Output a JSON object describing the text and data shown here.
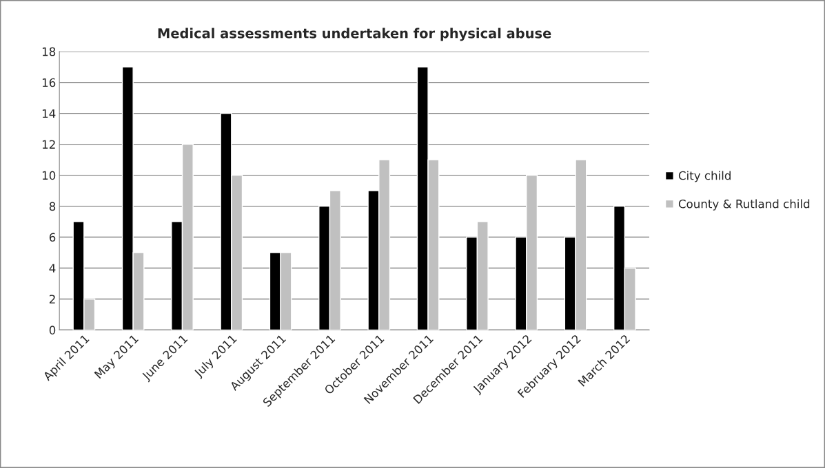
{
  "chart_data": {
    "type": "bar",
    "title": "Medical assessments undertaken for physical abuse",
    "categories": [
      "April 2011",
      "May 2011",
      "June 2011",
      "July 2011",
      "August 2011",
      "September 2011",
      "October 2011",
      "November 2011",
      "December 2011",
      "January 2012",
      "February 2012",
      "March 2012"
    ],
    "series": [
      {
        "name": "City child",
        "color": "#000000",
        "values": [
          7,
          17,
          7,
          14,
          5,
          8,
          9,
          17,
          6,
          6,
          6,
          8
        ]
      },
      {
        "name": "County & Rutland child",
        "color": "#c0c0c0",
        "values": [
          2,
          5,
          12,
          10,
          5,
          9,
          11,
          11,
          7,
          10,
          11,
          4
        ]
      }
    ],
    "ylim": [
      0,
      18
    ],
    "yticks": [
      0,
      2,
      4,
      6,
      8,
      10,
      12,
      14,
      16,
      18
    ],
    "grid": "y",
    "legend": "right"
  }
}
